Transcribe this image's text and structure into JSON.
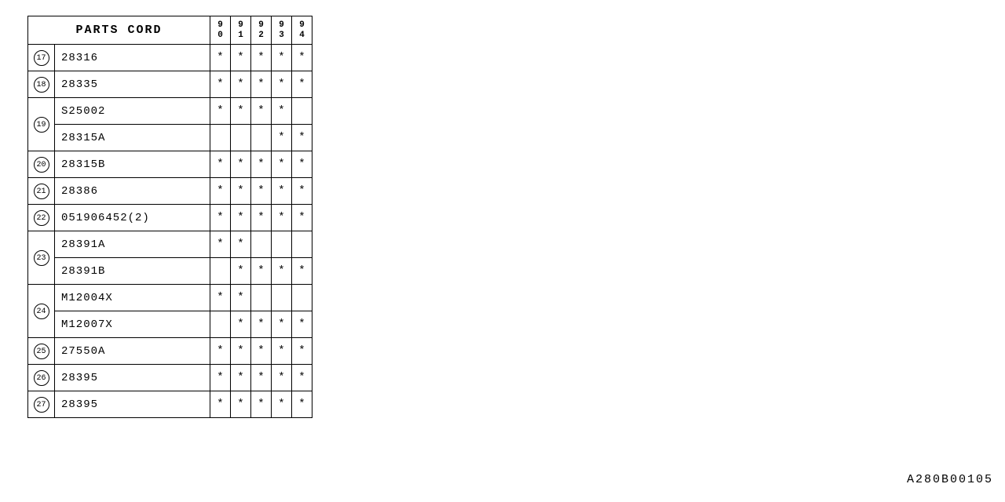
{
  "header": {
    "title": "PARTS CORD",
    "years": [
      "90",
      "91",
      "92",
      "93",
      "94"
    ]
  },
  "marker_symbol": "*",
  "groups": [
    {
      "ref": "17",
      "parts": [
        {
          "code": "28316",
          "marks": [
            true,
            true,
            true,
            true,
            true
          ]
        }
      ]
    },
    {
      "ref": "18",
      "parts": [
        {
          "code": "28335",
          "marks": [
            true,
            true,
            true,
            true,
            true
          ]
        }
      ]
    },
    {
      "ref": "19",
      "parts": [
        {
          "code": "S25002",
          "marks": [
            true,
            true,
            true,
            true,
            false
          ]
        },
        {
          "code": "28315A",
          "marks": [
            false,
            false,
            false,
            true,
            true
          ]
        }
      ]
    },
    {
      "ref": "20",
      "parts": [
        {
          "code": "28315B",
          "marks": [
            true,
            true,
            true,
            true,
            true
          ]
        }
      ]
    },
    {
      "ref": "21",
      "parts": [
        {
          "code": "28386",
          "marks": [
            true,
            true,
            true,
            true,
            true
          ]
        }
      ]
    },
    {
      "ref": "22",
      "parts": [
        {
          "code": "051906452(2)",
          "marks": [
            true,
            true,
            true,
            true,
            true
          ]
        }
      ]
    },
    {
      "ref": "23",
      "parts": [
        {
          "code": "28391A",
          "marks": [
            true,
            true,
            false,
            false,
            false
          ]
        },
        {
          "code": "28391B",
          "marks": [
            false,
            true,
            true,
            true,
            true
          ]
        }
      ]
    },
    {
      "ref": "24",
      "parts": [
        {
          "code": "M12004X",
          "marks": [
            true,
            true,
            false,
            false,
            false
          ]
        },
        {
          "code": "M12007X",
          "marks": [
            false,
            true,
            true,
            true,
            true
          ]
        }
      ]
    },
    {
      "ref": "25",
      "parts": [
        {
          "code": "27550A",
          "marks": [
            true,
            true,
            true,
            true,
            true
          ]
        }
      ]
    },
    {
      "ref": "26",
      "parts": [
        {
          "code": "28395",
          "marks": [
            true,
            true,
            true,
            true,
            true
          ]
        }
      ]
    },
    {
      "ref": "27",
      "parts": [
        {
          "code": "28395",
          "marks": [
            true,
            true,
            true,
            true,
            true
          ]
        }
      ]
    }
  ],
  "footer_code": "A280B00105",
  "colors": {
    "background": "#ffffff",
    "border": "#000000",
    "text": "#000000"
  },
  "table_type": "table"
}
